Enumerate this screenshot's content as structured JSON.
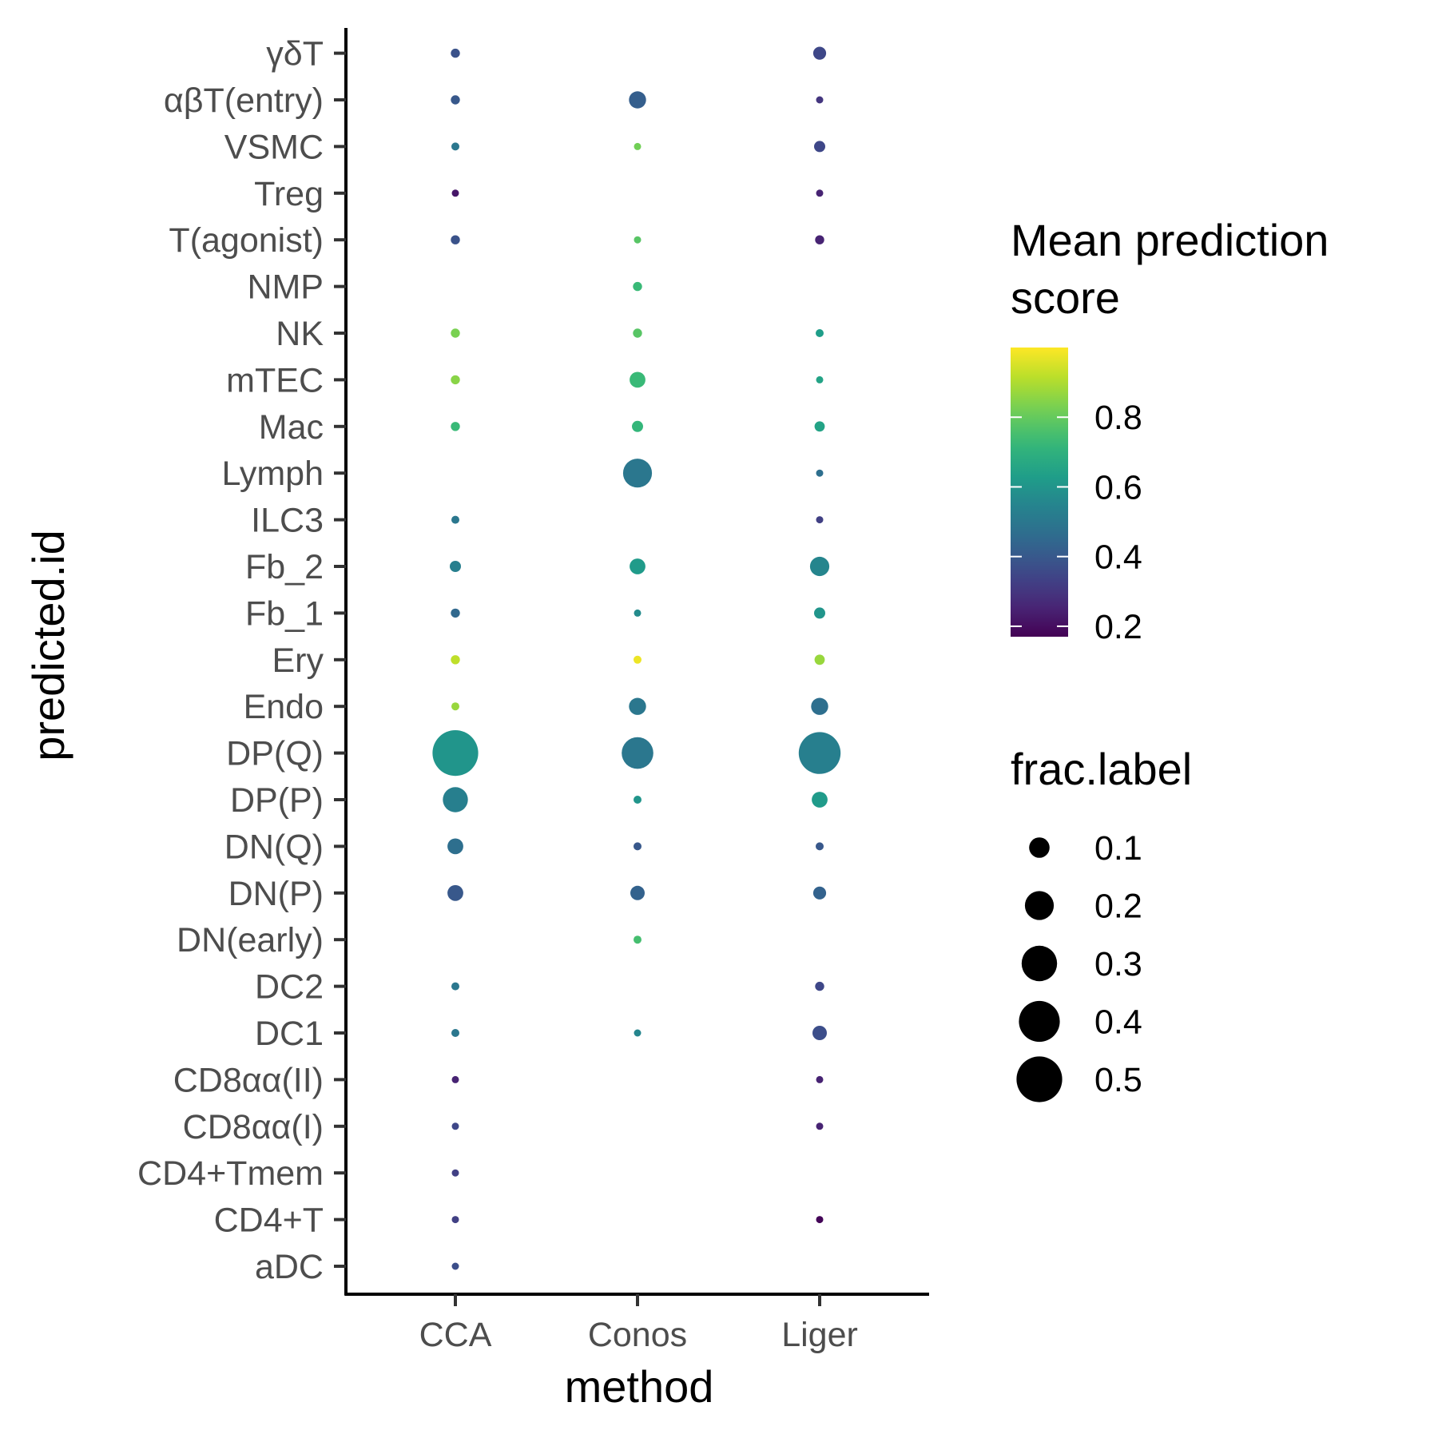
{
  "chart_data": {
    "type": "scatter",
    "xlabel": "method",
    "ylabel": "predicted.id",
    "x_categories": [
      "CCA",
      "Conos",
      "Liger"
    ],
    "y_categories": [
      "aDC",
      "CD4+T",
      "CD4+Tmem",
      "CD8αα(I)",
      "CD8αα(II)",
      "DC1",
      "DC2",
      "DN(early)",
      "DN(P)",
      "DN(Q)",
      "DP(P)",
      "DP(Q)",
      "Endo",
      "Ery",
      "Fb_1",
      "Fb_2",
      "ILC3",
      "Lymph",
      "Mac",
      "mTEC",
      "NK",
      "NMP",
      "T(agonist)",
      "Treg",
      "VSMC",
      "αβT(entry)",
      "γδT"
    ],
    "color_legend": {
      "title": "Mean prediction score",
      "title_lines": [
        "Mean prediction",
        "score"
      ],
      "range": [
        0.17,
        1.0
      ],
      "ticks": [
        0.2,
        0.4,
        0.6,
        0.8
      ],
      "tick_labels": [
        "0.2",
        "0.4",
        "0.6",
        "0.8"
      ],
      "palette": "viridis"
    },
    "size_legend": {
      "title": "frac.label",
      "values": [
        0.1,
        0.2,
        0.3,
        0.4,
        0.5
      ],
      "labels": [
        "0.1",
        "0.2",
        "0.3",
        "0.4",
        "0.5"
      ],
      "range": [
        0.0,
        0.55
      ]
    },
    "points": [
      {
        "method": "CCA",
        "id": "γδT",
        "frac": 0.02,
        "score": 0.38
      },
      {
        "method": "CCA",
        "id": "αβT(entry)",
        "frac": 0.02,
        "score": 0.4
      },
      {
        "method": "CCA",
        "id": "VSMC",
        "frac": 0.015,
        "score": 0.5
      },
      {
        "method": "CCA",
        "id": "Treg",
        "frac": 0.008,
        "score": 0.22
      },
      {
        "method": "CCA",
        "id": "T(agonist)",
        "frac": 0.02,
        "score": 0.38
      },
      {
        "method": "CCA",
        "id": "NK",
        "frac": 0.02,
        "score": 0.83
      },
      {
        "method": "CCA",
        "id": "mTEC",
        "frac": 0.02,
        "score": 0.85
      },
      {
        "method": "CCA",
        "id": "Mac",
        "frac": 0.02,
        "score": 0.73
      },
      {
        "method": "CCA",
        "id": "ILC3",
        "frac": 0.015,
        "score": 0.5
      },
      {
        "method": "CCA",
        "id": "Fb_2",
        "frac": 0.03,
        "score": 0.53
      },
      {
        "method": "CCA",
        "id": "Fb_1",
        "frac": 0.02,
        "score": 0.45
      },
      {
        "method": "CCA",
        "id": "Ery",
        "frac": 0.02,
        "score": 0.92
      },
      {
        "method": "CCA",
        "id": "Endo",
        "frac": 0.015,
        "score": 0.87
      },
      {
        "method": "CCA",
        "id": "DP(Q)",
        "frac": 0.5,
        "score": 0.6
      },
      {
        "method": "CCA",
        "id": "DP(P)",
        "frac": 0.15,
        "score": 0.53
      },
      {
        "method": "CCA",
        "id": "DN(Q)",
        "frac": 0.06,
        "score": 0.47
      },
      {
        "method": "CCA",
        "id": "DN(P)",
        "frac": 0.06,
        "score": 0.4
      },
      {
        "method": "CCA",
        "id": "DC2",
        "frac": 0.015,
        "score": 0.5
      },
      {
        "method": "CCA",
        "id": "DC1",
        "frac": 0.015,
        "score": 0.5
      },
      {
        "method": "CCA",
        "id": "CD8αα(II)",
        "frac": 0.006,
        "score": 0.25
      },
      {
        "method": "CCA",
        "id": "CD8αα(I)",
        "frac": 0.008,
        "score": 0.35
      },
      {
        "method": "CCA",
        "id": "CD4+Tmem",
        "frac": 0.006,
        "score": 0.33
      },
      {
        "method": "CCA",
        "id": "CD4+T",
        "frac": 0.006,
        "score": 0.33
      },
      {
        "method": "CCA",
        "id": "aDC",
        "frac": 0.01,
        "score": 0.37
      },
      {
        "method": "Conos",
        "id": "αβT(entry)",
        "frac": 0.07,
        "score": 0.42
      },
      {
        "method": "Conos",
        "id": "VSMC",
        "frac": 0.008,
        "score": 0.82
      },
      {
        "method": "Conos",
        "id": "T(agonist)",
        "frac": 0.012,
        "score": 0.78
      },
      {
        "method": "Conos",
        "id": "NMP",
        "frac": 0.02,
        "score": 0.73
      },
      {
        "method": "Conos",
        "id": "NK",
        "frac": 0.02,
        "score": 0.78
      },
      {
        "method": "Conos",
        "id": "mTEC",
        "frac": 0.06,
        "score": 0.73
      },
      {
        "method": "Conos",
        "id": "Mac",
        "frac": 0.03,
        "score": 0.72
      },
      {
        "method": "Conos",
        "id": "Lymph",
        "frac": 0.2,
        "score": 0.5
      },
      {
        "method": "Conos",
        "id": "Fb_2",
        "frac": 0.06,
        "score": 0.62
      },
      {
        "method": "Conos",
        "id": "Fb_1",
        "frac": 0.01,
        "score": 0.57
      },
      {
        "method": "Conos",
        "id": "Ery",
        "frac": 0.015,
        "score": 0.98
      },
      {
        "method": "Conos",
        "id": "Endo",
        "frac": 0.07,
        "score": 0.5
      },
      {
        "method": "Conos",
        "id": "DP(Q)",
        "frac": 0.24,
        "score": 0.5
      },
      {
        "method": "Conos",
        "id": "DP(P)",
        "frac": 0.015,
        "score": 0.6
      },
      {
        "method": "Conos",
        "id": "DN(Q)",
        "frac": 0.015,
        "score": 0.4
      },
      {
        "method": "Conos",
        "id": "DN(P)",
        "frac": 0.05,
        "score": 0.43
      },
      {
        "method": "Conos",
        "id": "DN(early)",
        "frac": 0.015,
        "score": 0.75
      },
      {
        "method": "Conos",
        "id": "DC1",
        "frac": 0.008,
        "score": 0.55
      },
      {
        "method": "Liger",
        "id": "γδT",
        "frac": 0.04,
        "score": 0.35
      },
      {
        "method": "Liger",
        "id": "αβT(entry)",
        "frac": 0.008,
        "score": 0.3
      },
      {
        "method": "Liger",
        "id": "VSMC",
        "frac": 0.03,
        "score": 0.35
      },
      {
        "method": "Liger",
        "id": "Treg",
        "frac": 0.008,
        "score": 0.25
      },
      {
        "method": "Liger",
        "id": "T(agonist)",
        "frac": 0.02,
        "score": 0.25
      },
      {
        "method": "Liger",
        "id": "NK",
        "frac": 0.015,
        "score": 0.63
      },
      {
        "method": "Liger",
        "id": "mTEC",
        "frac": 0.012,
        "score": 0.65
      },
      {
        "method": "Liger",
        "id": "Mac",
        "frac": 0.025,
        "score": 0.65
      },
      {
        "method": "Liger",
        "id": "Lymph",
        "frac": 0.012,
        "score": 0.47
      },
      {
        "method": "Liger",
        "id": "ILC3",
        "frac": 0.008,
        "score": 0.33
      },
      {
        "method": "Liger",
        "id": "Fb_2",
        "frac": 0.09,
        "score": 0.55
      },
      {
        "method": "Liger",
        "id": "Fb_1",
        "frac": 0.03,
        "score": 0.6
      },
      {
        "method": "Liger",
        "id": "Ery",
        "frac": 0.025,
        "score": 0.87
      },
      {
        "method": "Liger",
        "id": "Endo",
        "frac": 0.07,
        "score": 0.47
      },
      {
        "method": "Liger",
        "id": "DP(Q)",
        "frac": 0.42,
        "score": 0.53
      },
      {
        "method": "Liger",
        "id": "DP(P)",
        "frac": 0.06,
        "score": 0.62
      },
      {
        "method": "Liger",
        "id": "DN(Q)",
        "frac": 0.015,
        "score": 0.4
      },
      {
        "method": "Liger",
        "id": "DN(P)",
        "frac": 0.04,
        "score": 0.43
      },
      {
        "method": "Liger",
        "id": "DC2",
        "frac": 0.02,
        "score": 0.35
      },
      {
        "method": "Liger",
        "id": "DC1",
        "frac": 0.05,
        "score": 0.37
      },
      {
        "method": "Liger",
        "id": "CD8αα(II)",
        "frac": 0.008,
        "score": 0.25
      },
      {
        "method": "Liger",
        "id": "CD8αα(I)",
        "frac": 0.006,
        "score": 0.25
      },
      {
        "method": "Liger",
        "id": "CD4+T",
        "frac": 0.008,
        "score": 0.18
      }
    ]
  }
}
